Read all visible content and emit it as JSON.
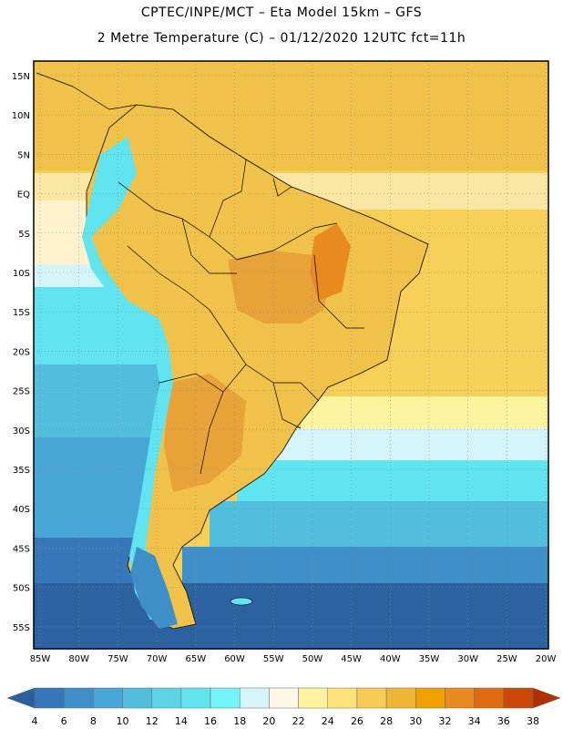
{
  "header": {
    "line1": "CPTEC/INPE/MCT –  Eta Model 15km – GFS",
    "line2": "2 Metre Temperature (C) – 01/12/2020 12UTC fct=11h"
  },
  "map": {
    "lat_labels": [
      "15N",
      "10N",
      "5N",
      "EQ",
      "5S",
      "10S",
      "15S",
      "20S",
      "25S",
      "30S",
      "35S",
      "40S",
      "45S",
      "50S",
      "55S"
    ],
    "lon_labels": [
      "85W",
      "80W",
      "75W",
      "70W",
      "65W",
      "60W",
      "55W",
      "50W",
      "45W",
      "40W",
      "35W",
      "30W",
      "25W",
      "20W"
    ]
  },
  "colorbar": {
    "labels": [
      "4",
      "6",
      "8",
      "10",
      "12",
      "14",
      "16",
      "18",
      "20",
      "22",
      "24",
      "26",
      "28",
      "30",
      "32",
      "34",
      "36",
      "38"
    ],
    "colors": [
      "#2b5fa0",
      "#3577b8",
      "#3e8fc8",
      "#48a6d6",
      "#52bede",
      "#5bd4e8",
      "#62e4f0",
      "#72f4fa",
      "#d4f4fa",
      "#fff8e8",
      "#fff3a0",
      "#fde27a",
      "#f6cc56",
      "#efb535",
      "#f0a000",
      "#e88a1e",
      "#e06a10",
      "#cc4808",
      "#b03000"
    ]
  },
  "colors": {
    "warm_land": "#f1c24a",
    "hot_land": "#e8a23a",
    "ocean_warm": "#f5cf58",
    "ocean_cool": "#50c2e0",
    "ocean_cold": "#2c62a2"
  }
}
